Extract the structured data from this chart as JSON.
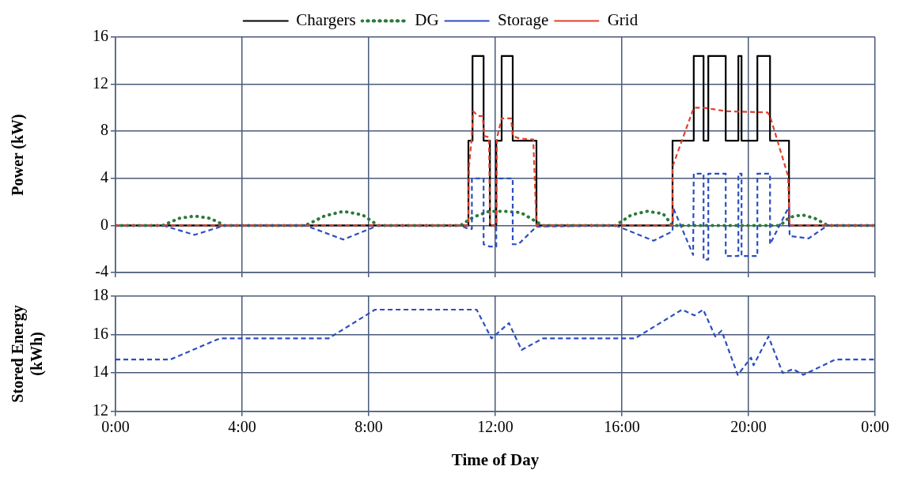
{
  "chart_data": [
    {
      "type": "line",
      "ylabel": "Power (kW)",
      "xlim": [
        0,
        24
      ],
      "xticks": [
        {
          "value": 0,
          "label": null
        },
        {
          "value": 4,
          "label": null
        },
        {
          "value": 8,
          "label": null
        },
        {
          "value": 12,
          "label": null
        },
        {
          "value": 16,
          "label": null
        },
        {
          "value": 20,
          "label": null
        },
        {
          "value": 24,
          "label": null
        }
      ],
      "ylim": [
        -4,
        16
      ],
      "yticks": [
        -4,
        0,
        4,
        8,
        12,
        16
      ],
      "grid": true,
      "legend": "top",
      "marker": "none",
      "tick_labels": "y",
      "series": [
        {
          "name": "Chargers",
          "color": "#000000",
          "line_style": "solid",
          "x": [
            0,
            11.15,
            11.15,
            11.28,
            11.28,
            11.63,
            11.63,
            11.83,
            11.83,
            12.03,
            12.03,
            12.2,
            12.2,
            12.55,
            12.55,
            13.3,
            13.3,
            17.6,
            17.6,
            18.27,
            18.27,
            18.58,
            18.58,
            18.73,
            18.73,
            19.28,
            19.28,
            19.68,
            19.68,
            19.78,
            19.78,
            20.28,
            20.28,
            20.68,
            20.68,
            21.28,
            21.28,
            24
          ],
          "values": [
            0,
            0,
            7.2,
            7.2,
            14.4,
            14.4,
            7.2,
            7.2,
            0,
            0,
            7.2,
            7.2,
            14.4,
            14.4,
            7.2,
            7.2,
            0,
            0,
            7.2,
            7.2,
            14.4,
            14.4,
            7.2,
            7.2,
            14.4,
            14.4,
            7.2,
            7.2,
            14.4,
            14.4,
            7.2,
            7.2,
            14.4,
            14.4,
            7.2,
            7.2,
            0,
            0
          ]
        },
        {
          "name": "DG",
          "color": "#2a7a3a",
          "line_style": "dotted",
          "x": [
            0,
            1.5,
            2,
            2.5,
            3,
            3.45,
            6,
            6.6,
            7.2,
            7.8,
            8.3,
            10.9,
            11.3,
            11.8,
            12.3,
            12.8,
            13.5,
            15.8,
            16.3,
            16.8,
            17.3,
            17.6,
            21,
            21.3,
            21.7,
            22.1,
            22.5,
            24
          ],
          "values": [
            0,
            0,
            0.6,
            0.8,
            0.6,
            0,
            0,
            0.8,
            1.2,
            0.9,
            0,
            0,
            0.7,
            1.2,
            1.2,
            1.1,
            0,
            0,
            0.9,
            1.2,
            1,
            0,
            0,
            0.7,
            0.9,
            0.6,
            0,
            0
          ]
        },
        {
          "name": "Storage",
          "color": "#2b4fc0",
          "line_style": "dashed",
          "x": [
            0,
            1.5,
            2.5,
            3.45,
            6,
            7.2,
            8.3,
            10.9,
            11.15,
            11.26,
            11.26,
            11.63,
            11.63,
            11.83,
            12.03,
            12.03,
            12.2,
            12.55,
            12.55,
            12.73,
            13.3,
            15.8,
            17,
            17.6,
            17.62,
            18.25,
            18.27,
            18.58,
            18.58,
            18.73,
            18.73,
            19.28,
            19.28,
            19.68,
            19.68,
            19.78,
            19.78,
            20.28,
            20.28,
            20.68,
            20.68,
            21.28,
            21.3,
            21.9,
            22.5,
            24
          ],
          "values": [
            0,
            0,
            -0.8,
            0,
            0,
            -1.2,
            0,
            0,
            -0.3,
            -0.3,
            4,
            4,
            -1.6,
            -1.8,
            -1.8,
            4,
            4,
            4,
            -1.6,
            -1.6,
            -0.1,
            0,
            -1.3,
            -0.5,
            1.5,
            -2.5,
            4.4,
            4.4,
            -2.9,
            -2.9,
            4.4,
            4.4,
            -2.6,
            -2.6,
            4.4,
            4.4,
            -2.6,
            -2.6,
            4.4,
            4.4,
            -1.6,
            1.6,
            -0.9,
            -1.1,
            0,
            0
          ]
        },
        {
          "name": "Grid",
          "color": "#e0402a",
          "line_style": "dashed",
          "x": [
            0,
            11.15,
            11.17,
            11.25,
            11.3,
            11.45,
            11.6,
            11.65,
            11.8,
            11.83,
            12.03,
            12.05,
            12.2,
            12.5,
            12.55,
            12.75,
            13.2,
            13.3,
            17.6,
            17.6,
            18.27,
            18.6,
            19.3,
            19.35,
            20.6,
            20.68,
            21.25,
            21.3,
            24
          ],
          "values": [
            0,
            0,
            5,
            7.3,
            9.7,
            9.3,
            9.3,
            7.6,
            7.5,
            0,
            0,
            7.4,
            9.1,
            9.1,
            7.6,
            7.4,
            7.3,
            0,
            0,
            5,
            10,
            10,
            9.7,
            9.7,
            9.6,
            9.3,
            4.2,
            0,
            0
          ]
        }
      ]
    },
    {
      "type": "line",
      "xlabel": "Time of Day",
      "ylabel": "Stored Energy (kWh)",
      "xlim": [
        0,
        24
      ],
      "xticks": [
        {
          "value": 0,
          "label": "0:00"
        },
        {
          "value": 4,
          "label": "4:00"
        },
        {
          "value": 8,
          "label": "8:00"
        },
        {
          "value": 12,
          "label": "12:00"
        },
        {
          "value": 16,
          "label": "16:00"
        },
        {
          "value": 20,
          "label": "20:00"
        },
        {
          "value": 24,
          "label": "0:00"
        }
      ],
      "ylim": [
        12,
        18
      ],
      "yticks": [
        12,
        14,
        16,
        18
      ],
      "grid": true,
      "marker": "none",
      "series": [
        {
          "color": "#2b4fc0",
          "line_style": "dashed",
          "x": [
            0,
            1.73,
            3.29,
            6.73,
            8.2,
            11.41,
            11.88,
            12.43,
            12.83,
            13.5,
            16.41,
            17.9,
            18.29,
            18.57,
            18.95,
            19.15,
            19.66,
            20.08,
            20.16,
            20.63,
            21.08,
            21.41,
            21.73,
            22.74,
            24
          ],
          "values": [
            14.7,
            14.7,
            15.8,
            15.8,
            17.3,
            17.3,
            15.8,
            16.6,
            15.2,
            15.8,
            15.8,
            17.3,
            17,
            17.3,
            15.9,
            16.2,
            13.9,
            14.8,
            14.4,
            15.9,
            14,
            14.2,
            13.9,
            14.7,
            14.7
          ]
        }
      ]
    }
  ]
}
